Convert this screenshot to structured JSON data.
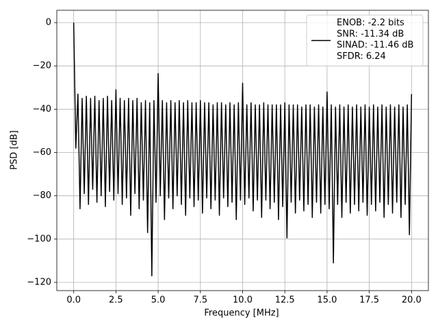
{
  "chart_data": {
    "type": "line",
    "xlabel": "Frequency [MHz]",
    "ylabel": "PSD [dB]",
    "xlim": [
      -1.0,
      21.0
    ],
    "ylim": [
      -123.8,
      5.7
    ],
    "xticks": [
      {
        "value": 0,
        "label": "0.0"
      },
      2.5,
      {
        "value": 5,
        "label": "5.0"
      },
      7.5,
      {
        "value": 10,
        "label": "10.0"
      },
      12.5,
      {
        "value": 15,
        "label": "15.0"
      },
      17.5,
      {
        "value": 20,
        "label": "20.0"
      }
    ],
    "yticks": [
      0,
      {
        "value": -20,
        "label": "−20"
      },
      {
        "value": -40,
        "label": "−40"
      },
      {
        "value": -60,
        "label": "−60"
      },
      {
        "value": -80,
        "label": "−80"
      },
      {
        "value": -100,
        "label": "−100"
      },
      {
        "value": -120,
        "label": "−120"
      }
    ],
    "grid": true,
    "legend": "upper right",
    "x": [
      0,
      0.125,
      0.25,
      0.375,
      0.5,
      0.625,
      0.75,
      0.875,
      1,
      1.125,
      1.25,
      1.375,
      1.5,
      1.625,
      1.75,
      1.875,
      2,
      2.125,
      2.25,
      2.375,
      2.5,
      2.625,
      2.75,
      2.875,
      3,
      3.125,
      3.25,
      3.375,
      3.5,
      3.625,
      3.75,
      3.875,
      4,
      4.125,
      4.25,
      4.375,
      4.5,
      4.625,
      4.75,
      4.875,
      5,
      5.125,
      5.25,
      5.375,
      5.5,
      5.625,
      5.75,
      5.875,
      6,
      6.125,
      6.25,
      6.375,
      6.5,
      6.625,
      6.75,
      6.875,
      7,
      7.125,
      7.25,
      7.375,
      7.5,
      7.625,
      7.75,
      7.875,
      8,
      8.125,
      8.25,
      8.375,
      8.5,
      8.625,
      8.75,
      8.875,
      9,
      9.125,
      9.25,
      9.375,
      9.5,
      9.625,
      9.75,
      9.875,
      10,
      10.125,
      10.25,
      10.375,
      10.5,
      10.625,
      10.75,
      10.875,
      11,
      11.125,
      11.25,
      11.375,
      11.5,
      11.625,
      11.75,
      11.875,
      12,
      12.125,
      12.25,
      12.375,
      12.5,
      12.625,
      12.75,
      12.875,
      13,
      13.125,
      13.25,
      13.375,
      13.5,
      13.625,
      13.75,
      13.875,
      14,
      14.125,
      14.25,
      14.375,
      14.5,
      14.625,
      14.75,
      14.875,
      15,
      15.125,
      15.25,
      15.375,
      15.5,
      15.625,
      15.75,
      15.875,
      16,
      16.125,
      16.25,
      16.375,
      16.5,
      16.625,
      16.75,
      16.875,
      17,
      17.125,
      17.25,
      17.375,
      17.5,
      17.625,
      17.75,
      17.875,
      18,
      18.125,
      18.25,
      18.375,
      18.5,
      18.625,
      18.75,
      18.875,
      19,
      19.125,
      19.25,
      19.375,
      19.5,
      19.625,
      19.75,
      19.875,
      20
    ],
    "series": [
      {
        "name": "ENOB: -2.2 bits\nSNR: -11.34 dB\nSINAD: -11.46 dB\nSFDR: 6.24",
        "color": "#000000",
        "values": [
          0,
          -58,
          -33,
          -86,
          -35,
          -79,
          -34,
          -84,
          -35,
          -77,
          -34,
          -83,
          -36,
          -80,
          -35,
          -85,
          -34,
          -78,
          -36,
          -82,
          -31,
          -79,
          -35,
          -84,
          -36,
          -81,
          -35,
          -89,
          -36,
          -79,
          -35,
          -86,
          -37,
          -82,
          -36,
          -97,
          -37,
          -117,
          -36,
          -83,
          -23.5,
          -80,
          -36,
          -91,
          -37,
          -81,
          -36,
          -86,
          -37,
          -80,
          -36,
          -84,
          -37,
          -89,
          -36,
          -81,
          -37,
          -85,
          -37,
          -82,
          -36,
          -88,
          -37,
          -81,
          -37,
          -86,
          -38,
          -82,
          -37,
          -89,
          -37,
          -81,
          -38,
          -85,
          -37,
          -83,
          -38,
          -91,
          -37,
          -82,
          -28,
          -84,
          -38,
          -81,
          -37,
          -87,
          -38,
          -82,
          -38,
          -90,
          -37,
          -82,
          -38,
          -86,
          -38,
          -83,
          -38,
          -91,
          -38,
          -85,
          -37,
          -99.5,
          -38,
          -83,
          -38,
          -88,
          -38,
          -82,
          -39,
          -87,
          -38,
          -84,
          -38,
          -90,
          -39,
          -83,
          -38,
          -88,
          -39,
          -84,
          -32,
          -86,
          -38,
          -111,
          -39,
          -84,
          -38,
          -90,
          -39,
          -83,
          -38,
          -88,
          -39,
          -84,
          -38,
          -87,
          -39,
          -83,
          -38,
          -89,
          -39,
          -84,
          -38,
          -87,
          -39,
          -83,
          -38,
          -90,
          -39,
          -84,
          -38,
          -88,
          -39,
          -83,
          -38,
          -90,
          -39,
          -84,
          -38,
          -98,
          -33
        ]
      }
    ]
  }
}
